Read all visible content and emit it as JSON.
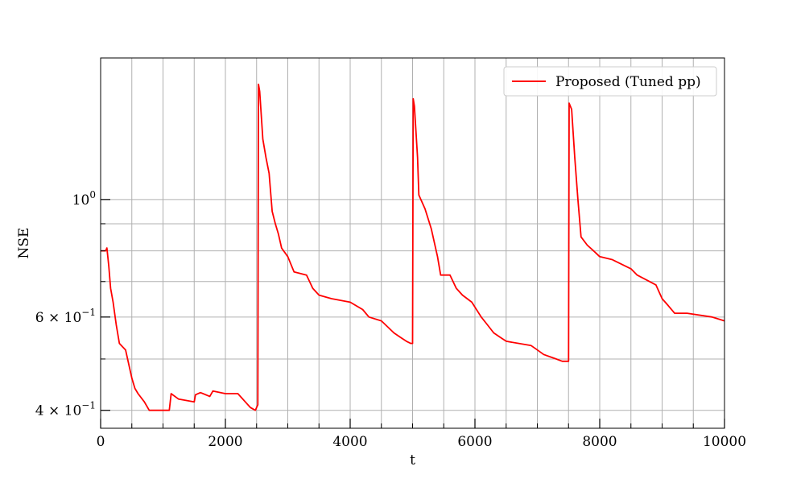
{
  "chart_data": {
    "type": "line",
    "title": "",
    "xlabel": "t",
    "ylabel": "NSE",
    "xlim": [
      0,
      10000
    ],
    "ylim": [
      0.37,
      1.85
    ],
    "yscale": "log",
    "grid": true,
    "legend_placement": "top-right",
    "x_ticks": [
      {
        "value": 0,
        "label": "0"
      },
      {
        "value": 2000,
        "label": "2000"
      },
      {
        "value": 4000,
        "label": "4000"
      },
      {
        "value": 6000,
        "label": "6000"
      },
      {
        "value": 8000,
        "label": "8000"
      },
      {
        "value": 10000,
        "label": "10000"
      }
    ],
    "x_minor_ticks": [
      500,
      1000,
      1500,
      2500,
      3000,
      3500,
      4500,
      5000,
      5500,
      6500,
      7000,
      7500,
      8500,
      9000,
      9500
    ],
    "y_ticks": [
      {
        "value": 1.0,
        "base": "10",
        "exp": "0",
        "prefix": ""
      },
      {
        "value": 0.6,
        "base": "10",
        "exp": "−1",
        "prefix": "6 × "
      },
      {
        "value": 0.4,
        "base": "10",
        "exp": "−1",
        "prefix": "4 × "
      }
    ],
    "y_minor_ticks": [
      0.5,
      0.7,
      0.8,
      0.9
    ],
    "series": [
      {
        "name": "Proposed (Tuned pp)",
        "color": "#ff0000",
        "points": [
          [
            0,
            0.8
          ],
          [
            80,
            0.8
          ],
          [
            100,
            0.81
          ],
          [
            130,
            0.75
          ],
          [
            160,
            0.68
          ],
          [
            200,
            0.64
          ],
          [
            250,
            0.58
          ],
          [
            300,
            0.535
          ],
          [
            400,
            0.52
          ],
          [
            500,
            0.46
          ],
          [
            550,
            0.44
          ],
          [
            600,
            0.43
          ],
          [
            700,
            0.415
          ],
          [
            780,
            0.4
          ],
          [
            900,
            0.4
          ],
          [
            1100,
            0.4
          ],
          [
            1130,
            0.43
          ],
          [
            1250,
            0.42
          ],
          [
            1500,
            0.415
          ],
          [
            1520,
            0.428
          ],
          [
            1600,
            0.432
          ],
          [
            1750,
            0.425
          ],
          [
            1800,
            0.435
          ],
          [
            2000,
            0.43
          ],
          [
            2200,
            0.43
          ],
          [
            2400,
            0.405
          ],
          [
            2480,
            0.4
          ],
          [
            2520,
            0.41
          ],
          [
            2530,
            1.65
          ],
          [
            2550,
            1.6
          ],
          [
            2600,
            1.3
          ],
          [
            2650,
            1.2
          ],
          [
            2700,
            1.12
          ],
          [
            2750,
            0.95
          ],
          [
            2800,
            0.9
          ],
          [
            2850,
            0.86
          ],
          [
            2900,
            0.81
          ],
          [
            3000,
            0.78
          ],
          [
            3100,
            0.73
          ],
          [
            3300,
            0.72
          ],
          [
            3400,
            0.68
          ],
          [
            3500,
            0.66
          ],
          [
            3700,
            0.65
          ],
          [
            4000,
            0.64
          ],
          [
            4200,
            0.62
          ],
          [
            4300,
            0.6
          ],
          [
            4500,
            0.59
          ],
          [
            4600,
            0.575
          ],
          [
            4700,
            0.56
          ],
          [
            4800,
            0.55
          ],
          [
            4900,
            0.54
          ],
          [
            4970,
            0.535
          ],
          [
            5000,
            0.535
          ],
          [
            5010,
            1.55
          ],
          [
            5030,
            1.5
          ],
          [
            5080,
            1.2
          ],
          [
            5100,
            1.02
          ],
          [
            5200,
            0.96
          ],
          [
            5300,
            0.88
          ],
          [
            5400,
            0.78
          ],
          [
            5450,
            0.72
          ],
          [
            5600,
            0.72
          ],
          [
            5700,
            0.68
          ],
          [
            5800,
            0.66
          ],
          [
            5950,
            0.64
          ],
          [
            6100,
            0.6
          ],
          [
            6200,
            0.58
          ],
          [
            6300,
            0.56
          ],
          [
            6400,
            0.55
          ],
          [
            6500,
            0.54
          ],
          [
            6900,
            0.53
          ],
          [
            7000,
            0.52
          ],
          [
            7100,
            0.51
          ],
          [
            7200,
            0.505
          ],
          [
            7300,
            0.5
          ],
          [
            7400,
            0.495
          ],
          [
            7480,
            0.495
          ],
          [
            7500,
            0.495
          ],
          [
            7510,
            1.52
          ],
          [
            7550,
            1.48
          ],
          [
            7600,
            1.2
          ],
          [
            7650,
            1.0
          ],
          [
            7700,
            0.85
          ],
          [
            7800,
            0.82
          ],
          [
            7900,
            0.8
          ],
          [
            8000,
            0.78
          ],
          [
            8200,
            0.77
          ],
          [
            8500,
            0.74
          ],
          [
            8600,
            0.72
          ],
          [
            8800,
            0.7
          ],
          [
            8900,
            0.69
          ],
          [
            9000,
            0.65
          ],
          [
            9100,
            0.63
          ],
          [
            9200,
            0.61
          ],
          [
            9400,
            0.61
          ],
          [
            9800,
            0.6
          ],
          [
            10000,
            0.59
          ]
        ]
      }
    ]
  }
}
